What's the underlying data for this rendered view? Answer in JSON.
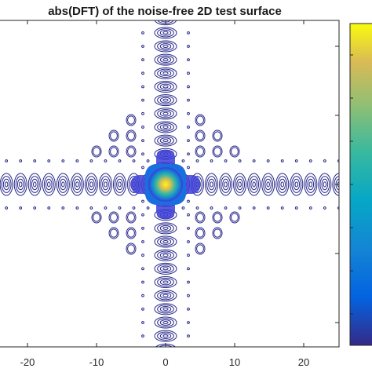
{
  "chart_data": {
    "type": "heatmap",
    "title": "abs(DFT) of the noise-free 2D test surface",
    "xlabel": "",
    "ylabel": "",
    "xlim": [
      -25,
      25
    ],
    "x_ticks": [
      -20,
      -10,
      0,
      10,
      20
    ],
    "x_tick_labels": [
      "-20",
      "-10",
      "0",
      "10",
      "20"
    ],
    "colormap": "parula",
    "colorbar": true,
    "grid": false,
    "peak": {
      "x": 0,
      "y": 0
    },
    "spectrum_arms": [
      "horizontal",
      "vertical"
    ]
  }
}
